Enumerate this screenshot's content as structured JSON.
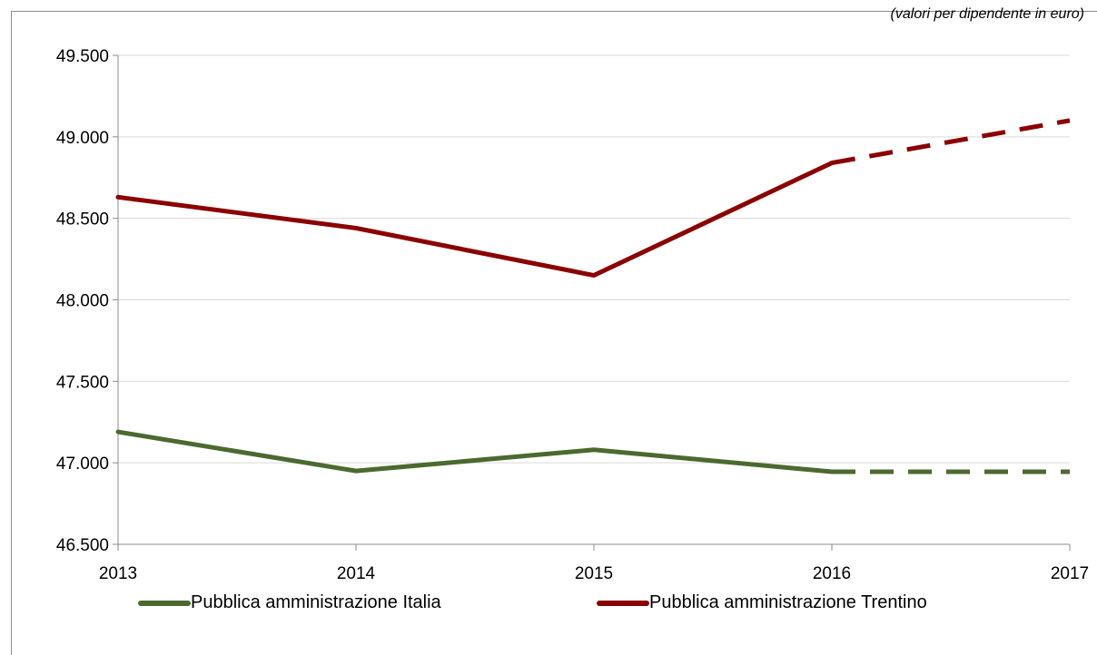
{
  "note": "(valori per dipendente in euro)",
  "chart_data": {
    "type": "line",
    "x": [
      "2013",
      "2014",
      "2015",
      "2016",
      "2017"
    ],
    "y_ticks": [
      "46.500",
      "47.000",
      "47.500",
      "48.000",
      "48.500",
      "49.000",
      "49.500"
    ],
    "ylim": [
      46500,
      49500
    ],
    "grid": true,
    "legend_position": "bottom",
    "series": [
      {
        "name": "Pubblica amministrazione Italia",
        "color": "#4a6a2e",
        "values": [
          47190,
          46950,
          47080,
          46945,
          46945
        ],
        "dashed_from_index": 3
      },
      {
        "name": "Pubblica amministrazione Trentino",
        "color": "#8b0000",
        "values": [
          48630,
          48440,
          48150,
          48840,
          49100
        ],
        "dashed_from_index": 3
      }
    ]
  }
}
